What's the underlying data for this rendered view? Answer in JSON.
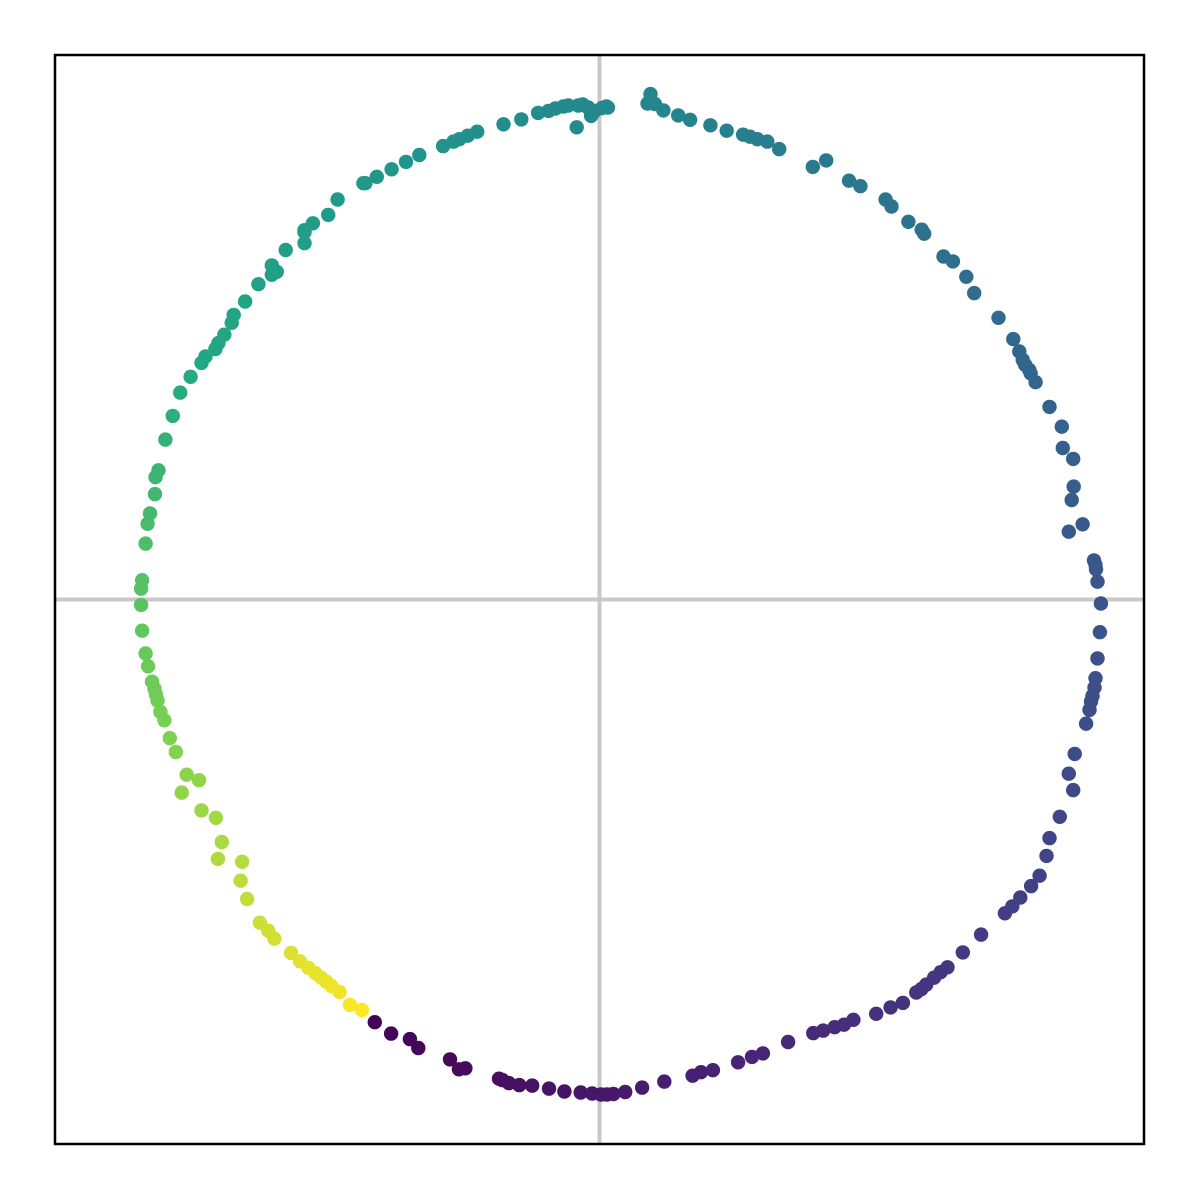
{
  "chart_data": {
    "type": "scatter",
    "title": "",
    "xlabel": "",
    "ylabel": "",
    "xlim": [
      -1.1,
      1.1
    ],
    "ylim": [
      -1.1,
      1.1
    ],
    "grid": false,
    "ticks": "none",
    "reference_lines": {
      "x": 0,
      "y": 0,
      "color": "#c8c8c8"
    },
    "colormap": "viridis",
    "color_by": "angle",
    "series": [
      {
        "points": [
          {
            "x": 0.103,
            "y": 1.021
          },
          {
            "x": 0.112,
            "y": 1.001
          },
          {
            "x": 0.097,
            "y": 1.002
          },
          {
            "x": 0.129,
            "y": 0.988
          },
          {
            "x": 0.159,
            "y": 0.978
          },
          {
            "x": 0.183,
            "y": 0.969
          },
          {
            "x": 0.224,
            "y": 0.958
          },
          {
            "x": 0.257,
            "y": 0.947
          },
          {
            "x": 0.29,
            "y": 0.939
          },
          {
            "x": 0.304,
            "y": 0.935
          },
          {
            "x": 0.319,
            "y": 0.93
          },
          {
            "x": 0.339,
            "y": 0.925
          },
          {
            "x": 0.363,
            "y": 0.91
          },
          {
            "x": 0.458,
            "y": 0.887
          },
          {
            "x": 0.431,
            "y": 0.874
          },
          {
            "x": 0.504,
            "y": 0.846
          },
          {
            "x": 0.527,
            "y": 0.835
          },
          {
            "x": 0.578,
            "y": 0.808
          },
          {
            "x": 0.59,
            "y": 0.794
          },
          {
            "x": 0.624,
            "y": 0.763
          },
          {
            "x": 0.651,
            "y": 0.747
          },
          {
            "x": 0.656,
            "y": 0.739
          },
          {
            "x": 0.695,
            "y": 0.693
          },
          {
            "x": 0.714,
            "y": 0.683
          },
          {
            "x": 0.741,
            "y": 0.652
          },
          {
            "x": 0.757,
            "y": 0.619
          },
          {
            "x": 0.806,
            "y": 0.569
          },
          {
            "x": 0.836,
            "y": 0.526
          },
          {
            "x": 0.848,
            "y": 0.501
          },
          {
            "x": 0.855,
            "y": 0.484
          },
          {
            "x": 0.86,
            "y": 0.474
          },
          {
            "x": 0.868,
            "y": 0.464
          },
          {
            "x": 0.871,
            "y": 0.457
          },
          {
            "x": 0.881,
            "y": 0.439
          },
          {
            "x": 0.909,
            "y": 0.389
          },
          {
            "x": 0.934,
            "y": 0.349
          },
          {
            "x": 0.936,
            "y": 0.306
          },
          {
            "x": 0.957,
            "y": 0.284
          },
          {
            "x": 0.958,
            "y": 0.228
          },
          {
            "x": 0.954,
            "y": 0.201
          },
          {
            "x": 0.976,
            "y": 0.152
          },
          {
            "x": 0.948,
            "y": 0.137
          },
          {
            "x": 0.999,
            "y": 0.079
          },
          {
            "x": 1.002,
            "y": 0.07
          },
          {
            "x": 1.003,
            "y": 0.061
          },
          {
            "x": 1.006,
            "y": 0.036
          },
          {
            "x": 1.013,
            "y": -0.008
          },
          {
            "x": 1.011,
            "y": -0.066
          },
          {
            "x": 1.006,
            "y": -0.119
          },
          {
            "x": 1.002,
            "y": -0.159
          },
          {
            "x": 1.0,
            "y": -0.178
          },
          {
            "x": 0.996,
            "y": -0.195
          },
          {
            "x": 0.993,
            "y": -0.206
          },
          {
            "x": 0.99,
            "y": -0.223
          },
          {
            "x": 0.983,
            "y": -0.251
          },
          {
            "x": 0.96,
            "y": -0.312
          },
          {
            "x": 0.948,
            "y": -0.352
          },
          {
            "x": 0.957,
            "y": -0.385
          },
          {
            "x": 0.93,
            "y": -0.439
          },
          {
            "x": 0.909,
            "y": -0.482
          },
          {
            "x": 0.903,
            "y": -0.518
          },
          {
            "x": 0.889,
            "y": -0.558
          },
          {
            "x": 0.872,
            "y": -0.579
          },
          {
            "x": 0.85,
            "y": -0.602
          },
          {
            "x": 0.819,
            "y": -0.634
          },
          {
            "x": 0.834,
            "y": -0.62
          },
          {
            "x": 0.771,
            "y": -0.677
          },
          {
            "x": 0.734,
            "y": -0.713
          },
          {
            "x": 0.703,
            "y": -0.743
          },
          {
            "x": 0.689,
            "y": -0.753
          },
          {
            "x": 0.676,
            "y": -0.764
          },
          {
            "x": 0.66,
            "y": -0.778
          },
          {
            "x": 0.65,
            "y": -0.787
          },
          {
            "x": 0.64,
            "y": -0.794
          },
          {
            "x": 0.613,
            "y": -0.815
          },
          {
            "x": 0.588,
            "y": -0.824
          },
          {
            "x": 0.559,
            "y": -0.837
          },
          {
            "x": 0.513,
            "y": -0.849
          },
          {
            "x": 0.494,
            "y": -0.859
          },
          {
            "x": 0.475,
            "y": -0.864
          },
          {
            "x": 0.452,
            "y": -0.871
          },
          {
            "x": 0.432,
            "y": -0.876
          },
          {
            "x": 0.381,
            "y": -0.894
          },
          {
            "x": 0.33,
            "y": -0.917
          },
          {
            "x": 0.308,
            "y": -0.924
          },
          {
            "x": 0.28,
            "y": -0.935
          },
          {
            "x": 0.205,
            "y": -0.955
          },
          {
            "x": 0.229,
            "y": -0.951
          },
          {
            "x": 0.188,
            "y": -0.962
          },
          {
            "x": 0.131,
            "y": -0.974
          },
          {
            "x": 0.086,
            "y": -0.986
          },
          {
            "x": 0.052,
            "y": -0.995
          },
          {
            "x": 0.028,
            "y": -0.999
          },
          {
            "x": 0.015,
            "y": -1.0
          },
          {
            "x": 0.003,
            "y": -1.0
          },
          {
            "x": -0.015,
            "y": -0.998
          },
          {
            "x": -0.038,
            "y": -0.996
          },
          {
            "x": -0.071,
            "y": -0.994
          },
          {
            "x": -0.102,
            "y": -0.988
          },
          {
            "x": -0.136,
            "y": -0.982
          },
          {
            "x": -0.162,
            "y": -0.981
          },
          {
            "x": -0.183,
            "y": -0.977
          },
          {
            "x": -0.196,
            "y": -0.971
          },
          {
            "x": -0.203,
            "y": -0.968
          },
          {
            "x": -0.271,
            "y": -0.947
          },
          {
            "x": -0.302,
            "y": -0.929
          },
          {
            "x": -0.284,
            "y": -0.949
          },
          {
            "x": -0.366,
            "y": -0.906
          },
          {
            "x": -0.383,
            "y": -0.888
          },
          {
            "x": -0.421,
            "y": -0.877
          },
          {
            "x": -0.454,
            "y": -0.854
          },
          {
            "x": -0.48,
            "y": -0.829
          },
          {
            "x": -0.504,
            "y": -0.819
          },
          {
            "x": -0.525,
            "y": -0.793
          },
          {
            "x": -0.541,
            "y": -0.781
          },
          {
            "x": -0.552,
            "y": -0.772
          },
          {
            "x": -0.562,
            "y": -0.764
          },
          {
            "x": -0.574,
            "y": -0.755
          },
          {
            "x": -0.588,
            "y": -0.744
          },
          {
            "x": -0.605,
            "y": -0.731
          },
          {
            "x": -0.623,
            "y": -0.714
          },
          {
            "x": -0.657,
            "y": -0.685
          },
          {
            "x": -0.669,
            "y": -0.669
          },
          {
            "x": -0.686,
            "y": -0.653
          },
          {
            "x": -0.712,
            "y": -0.605
          },
          {
            "x": -0.725,
            "y": -0.568
          },
          {
            "x": -0.722,
            "y": -0.53
          },
          {
            "x": -0.771,
            "y": -0.524
          },
          {
            "x": -0.763,
            "y": -0.49
          },
          {
            "x": -0.775,
            "y": -0.441
          },
          {
            "x": -0.804,
            "y": -0.426
          },
          {
            "x": -0.844,
            "y": -0.39
          },
          {
            "x": -0.809,
            "y": -0.365
          },
          {
            "x": -0.834,
            "y": -0.354
          },
          {
            "x": -0.856,
            "y": -0.308
          },
          {
            "x": -0.868,
            "y": -0.28
          },
          {
            "x": -0.879,
            "y": -0.244
          },
          {
            "x": -0.887,
            "y": -0.227
          },
          {
            "x": -0.893,
            "y": -0.204
          },
          {
            "x": -0.896,
            "y": -0.192
          },
          {
            "x": -0.899,
            "y": -0.18
          },
          {
            "x": -0.904,
            "y": -0.166
          },
          {
            "x": -0.912,
            "y": -0.135
          },
          {
            "x": -0.917,
            "y": -0.109
          },
          {
            "x": -0.924,
            "y": -0.063
          },
          {
            "x": -0.926,
            "y": -0.011
          },
          {
            "x": -0.926,
            "y": 0.022
          },
          {
            "x": -0.924,
            "y": 0.039
          },
          {
            "x": -0.917,
            "y": 0.113
          },
          {
            "x": -0.913,
            "y": 0.153
          },
          {
            "x": -0.908,
            "y": 0.174
          },
          {
            "x": -0.898,
            "y": 0.213
          },
          {
            "x": -0.897,
            "y": 0.247
          },
          {
            "x": -0.891,
            "y": 0.261
          },
          {
            "x": -0.877,
            "y": 0.323
          },
          {
            "x": -0.862,
            "y": 0.371
          },
          {
            "x": -0.847,
            "y": 0.418
          },
          {
            "x": -0.826,
            "y": 0.45
          },
          {
            "x": -0.804,
            "y": 0.478
          },
          {
            "x": -0.796,
            "y": 0.491
          },
          {
            "x": -0.776,
            "y": 0.506
          },
          {
            "x": -0.743,
            "y": 0.559
          },
          {
            "x": -0.758,
            "y": 0.535
          },
          {
            "x": -0.77,
            "y": 0.518
          },
          {
            "x": -0.739,
            "y": 0.575
          },
          {
            "x": -0.716,
            "y": 0.602
          },
          {
            "x": -0.689,
            "y": 0.637
          },
          {
            "x": -0.652,
            "y": 0.662
          },
          {
            "x": -0.662,
            "y": 0.675
          },
          {
            "x": -0.662,
            "y": 0.656
          },
          {
            "x": -0.634,
            "y": 0.706
          },
          {
            "x": -0.596,
            "y": 0.72
          },
          {
            "x": -0.596,
            "y": 0.742
          },
          {
            "x": -0.596,
            "y": 0.746
          },
          {
            "x": -0.579,
            "y": 0.76
          },
          {
            "x": -0.548,
            "y": 0.777
          },
          {
            "x": -0.529,
            "y": 0.808
          },
          {
            "x": -0.477,
            "y": 0.841
          },
          {
            "x": -0.473,
            "y": 0.841
          },
          {
            "x": -0.45,
            "y": 0.854
          },
          {
            "x": -0.42,
            "y": 0.869
          },
          {
            "x": -0.391,
            "y": 0.884
          },
          {
            "x": -0.364,
            "y": 0.898
          },
          {
            "x": -0.316,
            "y": 0.916
          },
          {
            "x": -0.295,
            "y": 0.925
          },
          {
            "x": -0.283,
            "y": 0.93
          },
          {
            "x": -0.266,
            "y": 0.937
          },
          {
            "x": -0.247,
            "y": 0.945
          },
          {
            "x": -0.194,
            "y": 0.96
          },
          {
            "x": -0.158,
            "y": 0.97
          },
          {
            "x": -0.124,
            "y": 0.983
          },
          {
            "x": -0.103,
            "y": 0.987
          },
          {
            "x": -0.089,
            "y": 0.992
          },
          {
            "x": -0.073,
            "y": 0.996
          },
          {
            "x": -0.063,
            "y": 0.998
          },
          {
            "x": -0.043,
            "y": 0.998
          },
          {
            "x": -0.034,
            "y": 1.0
          },
          {
            "x": -0.023,
            "y": 0.994
          },
          {
            "x": -0.022,
            "y": 0.993
          },
          {
            "x": -0.009,
            "y": 0.987
          },
          {
            "x": 0.017,
            "y": 0.994
          },
          {
            "x": 0.014,
            "y": 0.996
          },
          {
            "x": 0.005,
            "y": 0.993
          },
          {
            "x": -0.017,
            "y": 0.977
          },
          {
            "x": -0.046,
            "y": 0.954
          }
        ]
      }
    ]
  }
}
